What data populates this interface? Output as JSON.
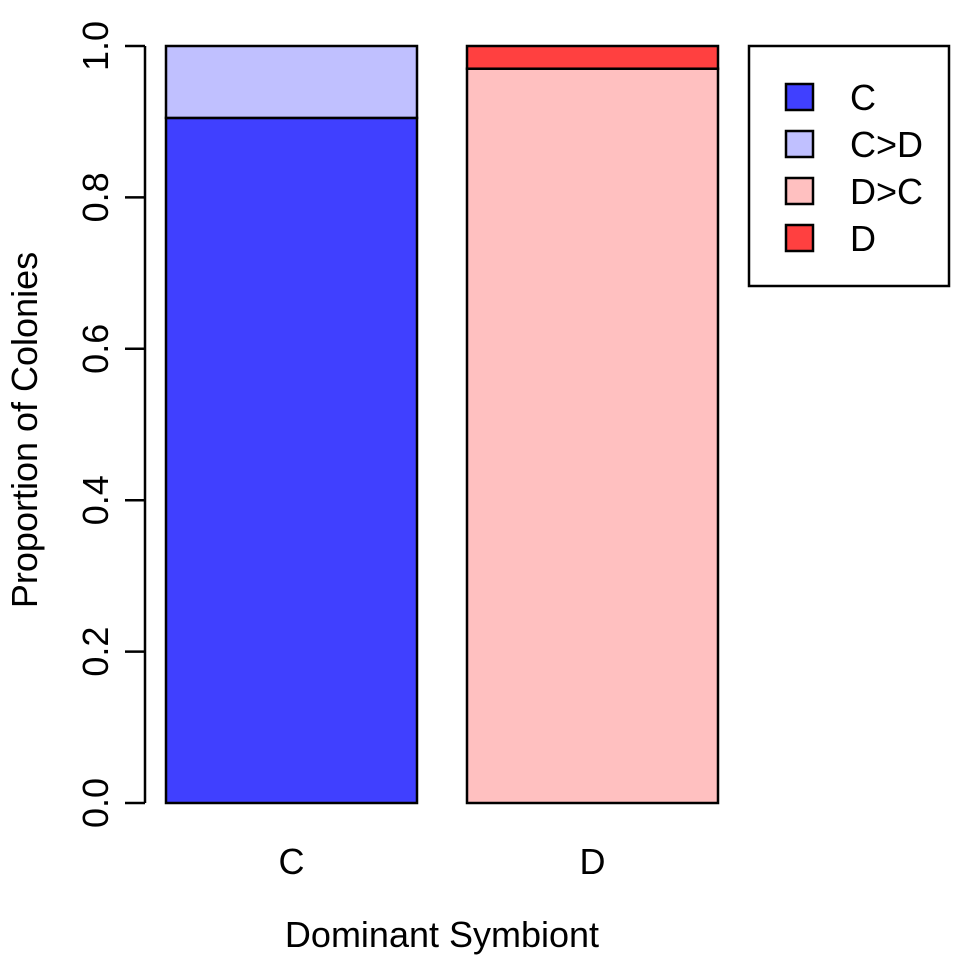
{
  "chart_data": {
    "type": "bar",
    "stacked": true,
    "xlabel": "Dominant Symbiont",
    "ylabel": "Proportion of Colonies",
    "categories": [
      "C",
      "D"
    ],
    "ylim": [
      0,
      1
    ],
    "yticks": [
      "0.0",
      "0.2",
      "0.4",
      "0.6",
      "0.8",
      "1.0"
    ],
    "series": [
      {
        "name": "C",
        "color": "#4040ff",
        "values": [
          0.905,
          0.0
        ]
      },
      {
        "name": "C>D",
        "color": "#c0c0ff",
        "values": [
          0.095,
          0.0
        ]
      },
      {
        "name": "D>C",
        "color": "#ffc0c0",
        "values": [
          0.0,
          0.97
        ]
      },
      {
        "name": "D",
        "color": "#ff4040",
        "values": [
          0.0,
          0.03
        ]
      }
    ],
    "legend": {
      "position": "top-right",
      "entries": [
        "C",
        "C>D",
        "D>C",
        "D"
      ]
    },
    "grid": false
  }
}
